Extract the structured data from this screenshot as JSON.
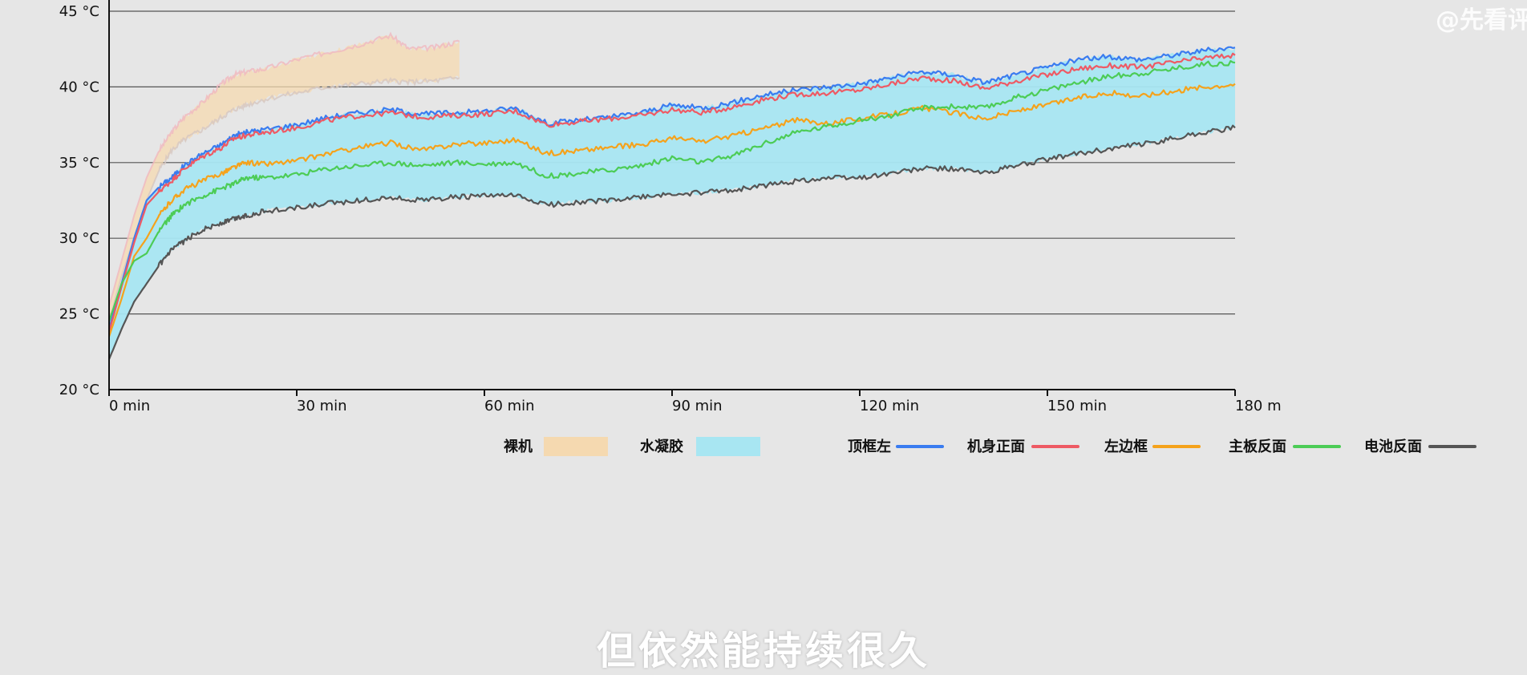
{
  "watermark": "@先看评",
  "subtitle": "但依然能持续很久",
  "chart_data": {
    "type": "line",
    "x_unit": "min",
    "y_unit": "°C",
    "xlim": [
      0,
      180
    ],
    "ylim": [
      20,
      45
    ],
    "x_ticks": [
      0,
      30,
      60,
      90,
      120,
      150,
      180
    ],
    "x_tick_labels": [
      "0 min",
      "30 min",
      "60 min",
      "90 min",
      "120 min",
      "150 min",
      "180 m"
    ],
    "y_ticks": [
      20,
      25,
      30,
      35,
      40,
      45
    ],
    "y_tick_labels": [
      "20 °C",
      "25 °C",
      "30 °C",
      "35 °C",
      "40 °C",
      "45 °C"
    ],
    "grid": "horizontal",
    "bands": [
      {
        "name": "裸机",
        "color": "#f5d9b0",
        "x": [
          0,
          2,
          4,
          6,
          8,
          10,
          12,
          15,
          18,
          20,
          22,
          25,
          30,
          35,
          40,
          45,
          48,
          52,
          56
        ],
        "upper": [
          25.5,
          28.5,
          31.5,
          34.0,
          35.8,
          37.0,
          38.0,
          39.0,
          40.2,
          40.8,
          41.0,
          41.2,
          41.8,
          42.3,
          42.8,
          43.4,
          42.5,
          42.6,
          43.0
        ],
        "lower": [
          24.5,
          27.5,
          30.0,
          32.5,
          34.5,
          35.8,
          36.5,
          37.2,
          38.0,
          38.5,
          38.8,
          39.2,
          39.6,
          40.0,
          40.2,
          40.4,
          40.3,
          40.4,
          40.6
        ]
      },
      {
        "name": "水凝胶",
        "color": "#a8e6f2",
        "x": [
          0,
          2,
          4,
          6,
          8,
          10,
          12,
          15,
          18,
          20,
          22,
          25,
          30,
          35,
          40,
          45,
          50,
          55,
          60,
          65,
          70,
          75,
          80,
          85,
          90,
          95,
          100,
          105,
          110,
          115,
          120,
          125,
          130,
          135,
          140,
          145,
          150,
          155,
          160,
          165,
          170,
          175,
          180
        ],
        "upper": [
          24.0,
          27.0,
          30.0,
          32.5,
          33.4,
          34.0,
          34.8,
          35.6,
          36.2,
          36.8,
          37.0,
          37.2,
          37.5,
          38.0,
          38.3,
          38.5,
          38.2,
          38.3,
          38.4,
          38.6,
          37.6,
          37.8,
          38.0,
          38.3,
          38.8,
          38.6,
          39.0,
          39.5,
          39.8,
          40.0,
          40.2,
          40.6,
          41.0,
          40.8,
          40.3,
          40.8,
          41.3,
          41.8,
          42.0,
          41.8,
          42.1,
          42.4,
          42.6
        ],
        "lower": [
          22.0,
          24.0,
          25.8,
          27.0,
          28.2,
          29.2,
          29.8,
          30.6,
          31.0,
          31.3,
          31.5,
          31.8,
          32.0,
          32.3,
          32.5,
          32.7,
          32.5,
          32.7,
          32.8,
          32.8,
          32.2,
          32.4,
          32.5,
          32.7,
          32.9,
          33.0,
          33.2,
          33.5,
          33.8,
          34.0,
          34.0,
          34.3,
          34.6,
          34.6,
          34.3,
          34.8,
          35.2,
          35.6,
          35.9,
          36.2,
          36.6,
          37.0,
          37.3
        ]
      }
    ],
    "series": [
      {
        "name": "顶框左",
        "color": "#3a7cf0",
        "x": [
          0,
          2,
          4,
          6,
          8,
          10,
          12,
          15,
          18,
          20,
          22,
          25,
          30,
          35,
          40,
          45,
          50,
          55,
          60,
          65,
          70,
          75,
          80,
          85,
          90,
          95,
          100,
          105,
          110,
          115,
          120,
          125,
          130,
          135,
          140,
          145,
          150,
          155,
          160,
          165,
          170,
          175,
          180
        ],
        "values": [
          24.0,
          27.0,
          30.0,
          32.5,
          33.4,
          34.0,
          34.8,
          35.6,
          36.2,
          36.8,
          37.0,
          37.2,
          37.5,
          38.0,
          38.3,
          38.5,
          38.2,
          38.3,
          38.4,
          38.6,
          37.6,
          37.8,
          38.0,
          38.3,
          38.8,
          38.6,
          39.0,
          39.5,
          39.8,
          40.0,
          40.2,
          40.6,
          41.0,
          40.8,
          40.3,
          40.8,
          41.3,
          41.8,
          42.0,
          41.8,
          42.1,
          42.4,
          42.6
        ]
      },
      {
        "name": "机身正面",
        "color": "#ee5a64",
        "x": [
          0,
          2,
          4,
          6,
          8,
          10,
          12,
          15,
          18,
          20,
          22,
          25,
          30,
          35,
          40,
          45,
          50,
          55,
          60,
          65,
          70,
          75,
          80,
          85,
          90,
          95,
          100,
          105,
          110,
          115,
          120,
          125,
          130,
          135,
          140,
          145,
          150,
          155,
          160,
          165,
          170,
          175,
          180
        ],
        "values": [
          23.8,
          26.8,
          29.7,
          32.2,
          33.1,
          33.8,
          34.6,
          35.4,
          36.0,
          36.6,
          36.8,
          37.0,
          37.3,
          37.8,
          38.1,
          38.3,
          38.0,
          38.1,
          38.2,
          38.4,
          37.5,
          37.7,
          37.9,
          38.1,
          38.5,
          38.3,
          38.7,
          39.2,
          39.5,
          39.6,
          39.8,
          40.2,
          40.6,
          40.4,
          39.9,
          40.4,
          40.8,
          41.2,
          41.4,
          41.3,
          41.6,
          41.9,
          42.1
        ]
      },
      {
        "name": "左边框",
        "color": "#f5a21b",
        "x": [
          0,
          2,
          4,
          6,
          8,
          10,
          12,
          15,
          18,
          20,
          22,
          25,
          30,
          35,
          40,
          45,
          50,
          55,
          60,
          65,
          70,
          75,
          80,
          85,
          90,
          95,
          100,
          105,
          110,
          115,
          120,
          125,
          130,
          135,
          140,
          145,
          150,
          155,
          160,
          165,
          170,
          175,
          180
        ],
        "values": [
          23.5,
          26.0,
          28.8,
          30.0,
          31.5,
          32.5,
          33.2,
          33.8,
          34.3,
          34.7,
          35.0,
          34.9,
          35.1,
          35.6,
          36.0,
          36.3,
          35.8,
          36.2,
          36.3,
          36.5,
          35.6,
          35.8,
          36.0,
          36.2,
          36.6,
          36.4,
          36.8,
          37.3,
          37.8,
          37.6,
          37.9,
          38.2,
          38.6,
          38.3,
          37.9,
          38.4,
          38.8,
          39.3,
          39.6,
          39.4,
          39.7,
          40.0,
          40.2
        ]
      },
      {
        "name": "主板反面",
        "color": "#4ccc56",
        "x": [
          0,
          2,
          4,
          6,
          8,
          10,
          12,
          15,
          18,
          20,
          22,
          25,
          30,
          35,
          40,
          45,
          50,
          55,
          60,
          65,
          70,
          75,
          80,
          85,
          90,
          95,
          100,
          105,
          110,
          115,
          120,
          125,
          130,
          135,
          140,
          145,
          150,
          155,
          160,
          165,
          170,
          175,
          180
        ],
        "values": [
          24.5,
          27.0,
          28.5,
          29.0,
          30.5,
          31.5,
          32.2,
          32.8,
          33.3,
          33.6,
          34.0,
          34.0,
          34.2,
          34.6,
          34.8,
          35.0,
          34.8,
          35.0,
          34.9,
          35.0,
          34.1,
          34.3,
          34.5,
          34.8,
          35.3,
          35.0,
          35.5,
          36.3,
          37.0,
          37.4,
          37.8,
          38.1,
          38.6,
          38.7,
          38.6,
          39.3,
          39.8,
          40.3,
          40.7,
          40.9,
          41.2,
          41.5,
          41.6
        ]
      },
      {
        "name": "电池反面",
        "color": "#555555",
        "x": [
          0,
          2,
          4,
          6,
          8,
          10,
          12,
          15,
          18,
          20,
          22,
          25,
          30,
          35,
          40,
          45,
          50,
          55,
          60,
          65,
          70,
          75,
          80,
          85,
          90,
          95,
          100,
          105,
          110,
          115,
          120,
          125,
          130,
          135,
          140,
          145,
          150,
          155,
          160,
          165,
          170,
          175,
          180
        ],
        "values": [
          22.0,
          24.0,
          25.8,
          27.0,
          28.2,
          29.2,
          29.8,
          30.6,
          31.0,
          31.3,
          31.5,
          31.8,
          32.0,
          32.3,
          32.5,
          32.7,
          32.5,
          32.7,
          32.8,
          32.8,
          32.2,
          32.4,
          32.5,
          32.7,
          32.9,
          33.0,
          33.2,
          33.5,
          33.8,
          34.0,
          34.0,
          34.3,
          34.6,
          34.6,
          34.3,
          34.8,
          35.2,
          35.6,
          35.9,
          36.2,
          36.6,
          37.0,
          37.3
        ]
      }
    ],
    "legend_placement": "bottom-center"
  }
}
